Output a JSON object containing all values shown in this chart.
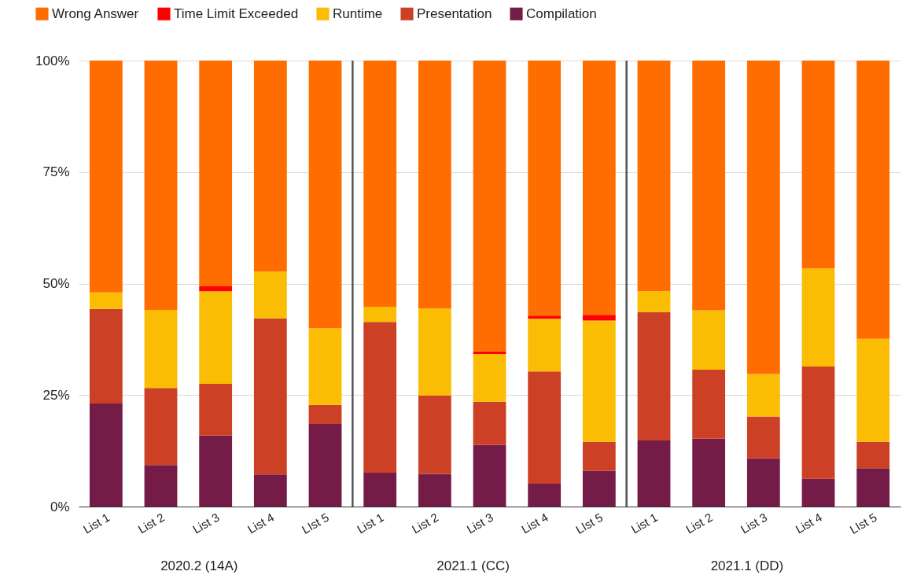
{
  "chart_data": {
    "type": "bar",
    "stacked": true,
    "categories": [
      "List 1",
      "List 2",
      "List 3",
      "List 4",
      "LIst 5",
      "List 1",
      "List 2",
      "List 3",
      "List 4",
      "LIst 5",
      "List 1",
      "List 2",
      "List 3",
      "List 4",
      "LIst 5"
    ],
    "series": [
      {
        "name": "Compilation",
        "color": "#741b47",
        "values": [
          23.1,
          9.3,
          15.9,
          7.2,
          18.5,
          7.6,
          7.3,
          13.8,
          5.1,
          8.0,
          14.8,
          15.2,
          10.8,
          6.2,
          8.6
        ]
      },
      {
        "name": "Presentation",
        "color": "#cc4125",
        "values": [
          21.2,
          17.3,
          11.6,
          35.0,
          4.3,
          33.8,
          17.6,
          9.7,
          25.2,
          6.5,
          28.8,
          15.5,
          9.4,
          25.2,
          5.9
        ]
      },
      {
        "name": "Runtime",
        "color": "#fbbc04",
        "values": [
          3.7,
          17.5,
          20.8,
          10.5,
          17.2,
          3.4,
          19.5,
          10.7,
          11.8,
          27.2,
          4.7,
          13.3,
          9.5,
          22.0,
          23.1
        ]
      },
      {
        "name": "Time Limit Exceeded",
        "color": "#ff0000",
        "values": [
          0,
          0,
          1.1,
          0,
          0,
          0,
          0,
          0.6,
          0.7,
          1.3,
          0,
          0,
          0,
          0,
          0
        ]
      },
      {
        "name": "Wrong Answer",
        "color": "#ff6d01",
        "values": [
          52.0,
          55.9,
          50.6,
          47.3,
          60.0,
          55.2,
          55.6,
          65.2,
          57.2,
          57.0,
          51.7,
          56.0,
          70.3,
          46.6,
          62.4
        ]
      }
    ],
    "ylim": [
      0,
      100
    ],
    "yticks": [
      {
        "value": 0,
        "label": "0%"
      },
      {
        "value": 25,
        "label": "25%"
      },
      {
        "value": 50,
        "label": "50%"
      },
      {
        "value": 75,
        "label": "75%"
      },
      {
        "value": 100,
        "label": "100%"
      }
    ],
    "grid": "y",
    "legend": "top",
    "annotations": [
      "2020.2 (14A)",
      "2021.1 (CC)",
      "2021.1 (DD)"
    ]
  }
}
